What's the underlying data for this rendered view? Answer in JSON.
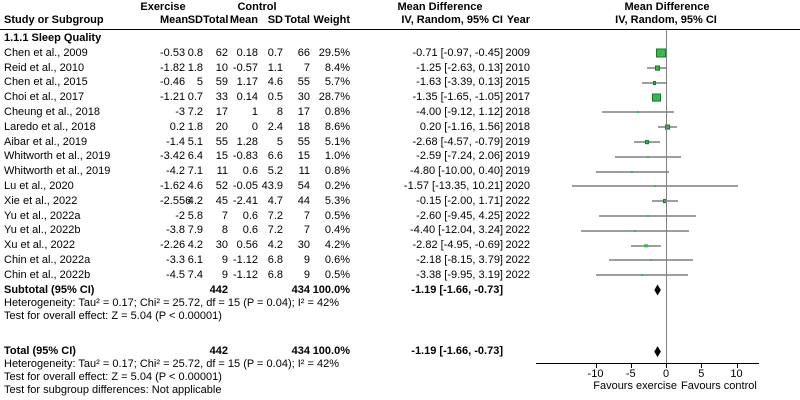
{
  "colors": {
    "marker_fill": "#3cb74b",
    "marker_border": "#14782a",
    "ci_line": "#3d3d3d",
    "zero_line": "#808080",
    "diamond": "#000000",
    "header_rule": "#000000"
  },
  "header": {
    "group_exercise": "Exercise",
    "group_control": "Control",
    "col_study": "Study or Subgroup",
    "col_mean_e": "Mean",
    "col_sd_e": "SD",
    "col_total_e": "Total",
    "col_mean_c": "Mean",
    "col_sd_c": "SD",
    "col_total_c": "Total",
    "col_weight": "Weight",
    "md_text_line1": "Mean Difference",
    "md_text_line2": "IV, Random, 95% CI",
    "col_year": "Year",
    "md_plot_line1": "Mean Difference",
    "md_plot_line2": "IV, Random, 95% CI"
  },
  "chart_data": {
    "type": "forest",
    "subgroup_label": "1.1.1 Sleep Quality",
    "effect_measure": "Mean Difference, IV, Random, 95% CI",
    "x_axis": {
      "ticks": [
        -10,
        -5,
        0,
        5,
        10
      ],
      "xlim": [
        -19,
        13.3
      ],
      "label_left": "Favours exercise",
      "label_right": "Favours control"
    },
    "studies": [
      {
        "study": "Chen et al., 2009",
        "mean_e": "-0.53",
        "sd_e": "0.8",
        "total_e": "62",
        "mean_c": "0.18",
        "sd_c": "0.7",
        "total_c": "66",
        "weight": "29.5%",
        "md_ci": "-0.71 [-0.97, -0.45]",
        "year": "2009",
        "md": -0.71,
        "ci_low": -0.97,
        "ci_high": -0.45,
        "weight_pct": 29.5
      },
      {
        "study": "Reid et al., 2010",
        "mean_e": "-1.82",
        "sd_e": "1.8",
        "total_e": "10",
        "mean_c": "-0.57",
        "sd_c": "1.1",
        "total_c": "7",
        "weight": "8.4%",
        "md_ci": "-1.25 [-2.63, 0.13]",
        "year": "2010",
        "md": -1.25,
        "ci_low": -2.63,
        "ci_high": 0.13,
        "weight_pct": 8.4
      },
      {
        "study": "Chen et al., 2015",
        "mean_e": "-0.46",
        "sd_e": "5",
        "total_e": "59",
        "mean_c": "1.17",
        "sd_c": "4.6",
        "total_c": "55",
        "weight": "5.7%",
        "md_ci": "-1.63 [-3.39, 0.13]",
        "year": "2015",
        "md": -1.63,
        "ci_low": -3.39,
        "ci_high": 0.13,
        "weight_pct": 5.7
      },
      {
        "study": "Choi et al., 2017",
        "mean_e": "-1.21",
        "sd_e": "0.7",
        "total_e": "33",
        "mean_c": "0.14",
        "sd_c": "0.5",
        "total_c": "30",
        "weight": "28.7%",
        "md_ci": "-1.35 [-1.65, -1.05]",
        "year": "2017",
        "md": -1.35,
        "ci_low": -1.65,
        "ci_high": -1.05,
        "weight_pct": 28.7
      },
      {
        "study": "Cheung et al., 2018",
        "mean_e": "-3",
        "sd_e": "7.2",
        "total_e": "17",
        "mean_c": "1",
        "sd_c": "8",
        "total_c": "17",
        "weight": "0.8%",
        "md_ci": "-4.00 [-9.12, 1.12]",
        "year": "2018",
        "md": -4.0,
        "ci_low": -9.12,
        "ci_high": 1.12,
        "weight_pct": 0.8
      },
      {
        "study": "Laredo et al., 2018",
        "mean_e": "0.2",
        "sd_e": "1.8",
        "total_e": "20",
        "mean_c": "0",
        "sd_c": "2.4",
        "total_c": "18",
        "weight": "8.6%",
        "md_ci": "0.20 [-1.16, 1.56]",
        "year": "2018",
        "md": 0.2,
        "ci_low": -1.16,
        "ci_high": 1.56,
        "weight_pct": 8.6
      },
      {
        "study": "Aibar et al., 2019",
        "mean_e": "-1.4",
        "sd_e": "5.1",
        "total_e": "55",
        "mean_c": "1.28",
        "sd_c": "5",
        "total_c": "55",
        "weight": "5.1%",
        "md_ci": "-2.68 [-4.57, -0.79]",
        "year": "2019",
        "md": -2.68,
        "ci_low": -4.57,
        "ci_high": -0.79,
        "weight_pct": 5.1
      },
      {
        "study": "Whitworth et al., 2019",
        "mean_e": "-3.42",
        "sd_e": "6.4",
        "total_e": "15",
        "mean_c": "-0.83",
        "sd_c": "6.6",
        "total_c": "15",
        "weight": "1.0%",
        "md_ci": "-2.59 [-7.24, 2.06]",
        "year": "2019",
        "md": -2.59,
        "ci_low": -7.24,
        "ci_high": 2.06,
        "weight_pct": 1.0
      },
      {
        "study": "Whitworth et al.,  2019",
        "mean_e": "-4.2",
        "sd_e": "7.1",
        "total_e": "11",
        "mean_c": "0.6",
        "sd_c": "5.2",
        "total_c": "11",
        "weight": "0.8%",
        "md_ci": "-4.80 [-10.00, 0.40]",
        "year": "2019",
        "md": -4.8,
        "ci_low": -10.0,
        "ci_high": 0.4,
        "weight_pct": 0.8
      },
      {
        "study": "Lu et al., 2020",
        "mean_e": "-1.62",
        "sd_e": "4.6",
        "total_e": "52",
        "mean_c": "-0.05",
        "sd_c": "43.9",
        "total_c": "54",
        "weight": "0.2%",
        "md_ci": "-1.57 [-13.35, 10.21]",
        "year": "2020",
        "md": -1.57,
        "ci_low": -13.35,
        "ci_high": 10.21,
        "weight_pct": 0.2
      },
      {
        "study": "Xie et al., 2022",
        "mean_e": "-2.556",
        "sd_e": "4.2",
        "total_e": "45",
        "mean_c": "-2.41",
        "sd_c": "4.7",
        "total_c": "44",
        "weight": "5.3%",
        "md_ci": "-0.15 [-2.00, 1.71]",
        "year": "2022",
        "md": -0.15,
        "ci_low": -2.0,
        "ci_high": 1.71,
        "weight_pct": 5.3
      },
      {
        "study": "Yu et al., 2022a",
        "mean_e": "-2",
        "sd_e": "5.8",
        "total_e": "7",
        "mean_c": "0.6",
        "sd_c": "7.2",
        "total_c": "7",
        "weight": "0.5%",
        "md_ci": "-2.60 [-9.45, 4.25]",
        "year": "2022",
        "md": -2.6,
        "ci_low": -9.45,
        "ci_high": 4.25,
        "weight_pct": 0.5
      },
      {
        "study": "Yu et al., 2022b",
        "mean_e": "-3.8",
        "sd_e": "7.9",
        "total_e": "8",
        "mean_c": "0.6",
        "sd_c": "7.2",
        "total_c": "7",
        "weight": "0.4%",
        "md_ci": "-4.40 [-12.04, 3.24]",
        "year": "2022",
        "md": -4.4,
        "ci_low": -12.04,
        "ci_high": 3.24,
        "weight_pct": 0.4
      },
      {
        "study": "Xu et al., 2022",
        "mean_e": "-2.26",
        "sd_e": "4.2",
        "total_e": "30",
        "mean_c": "0.56",
        "sd_c": "4.2",
        "total_c": "30",
        "weight": "4.2%",
        "md_ci": "-2.82 [-4.95, -0.69]",
        "year": "2022",
        "md": -2.82,
        "ci_low": -4.95,
        "ci_high": -0.69,
        "weight_pct": 4.2
      },
      {
        "study": "Chin et al., 2022a",
        "mean_e": "-3.3",
        "sd_e": "6.1",
        "total_e": "9",
        "mean_c": "-1.12",
        "sd_c": "6.8",
        "total_c": "9",
        "weight": "0.6%",
        "md_ci": "-2.18 [-8.15, 3.79]",
        "year": "2022",
        "md": -2.18,
        "ci_low": -8.15,
        "ci_high": 3.79,
        "weight_pct": 0.6
      },
      {
        "study": "Chin et al., 2022b",
        "mean_e": "-4.5",
        "sd_e": "7.4",
        "total_e": "9",
        "mean_c": "-1.12",
        "sd_c": "6.8",
        "total_c": "9",
        "weight": "0.5%",
        "md_ci": "-3.38 [-9.95, 3.19]",
        "year": "2022",
        "md": -3.38,
        "ci_low": -9.95,
        "ci_high": 3.19,
        "weight_pct": 0.5
      }
    ],
    "subtotal": {
      "label": "Subtotal (95% CI)",
      "total_e": "442",
      "total_c": "434",
      "weight": "100.0%",
      "md_ci": "-1.19 [-1.66, -0.73]",
      "md": -1.19,
      "ci_low": -1.66,
      "ci_high": -0.73
    },
    "subtotal_heterogeneity": "Heterogeneity: Tau² = 0.17; Chi² = 25.72, df = 15 (P = 0.04); I² = 42%",
    "subtotal_test": "Test for overall effect: Z = 5.04 (P < 0.00001)",
    "total": {
      "label": "Total (95% CI)",
      "total_e": "442",
      "total_c": "434",
      "weight": "100.0%",
      "md_ci": "-1.19 [-1.66, -0.73]",
      "md": -1.19,
      "ci_low": -1.66,
      "ci_high": -0.73
    },
    "total_heterogeneity": "Heterogeneity: Tau² = 0.17; Chi² = 25.72, df = 15 (P = 0.04); I² = 42%",
    "total_test": "Test for overall effect: Z = 5.04 (P < 0.00001)",
    "subgroup_diff": "Test for subgroup differences: Not applicable"
  }
}
